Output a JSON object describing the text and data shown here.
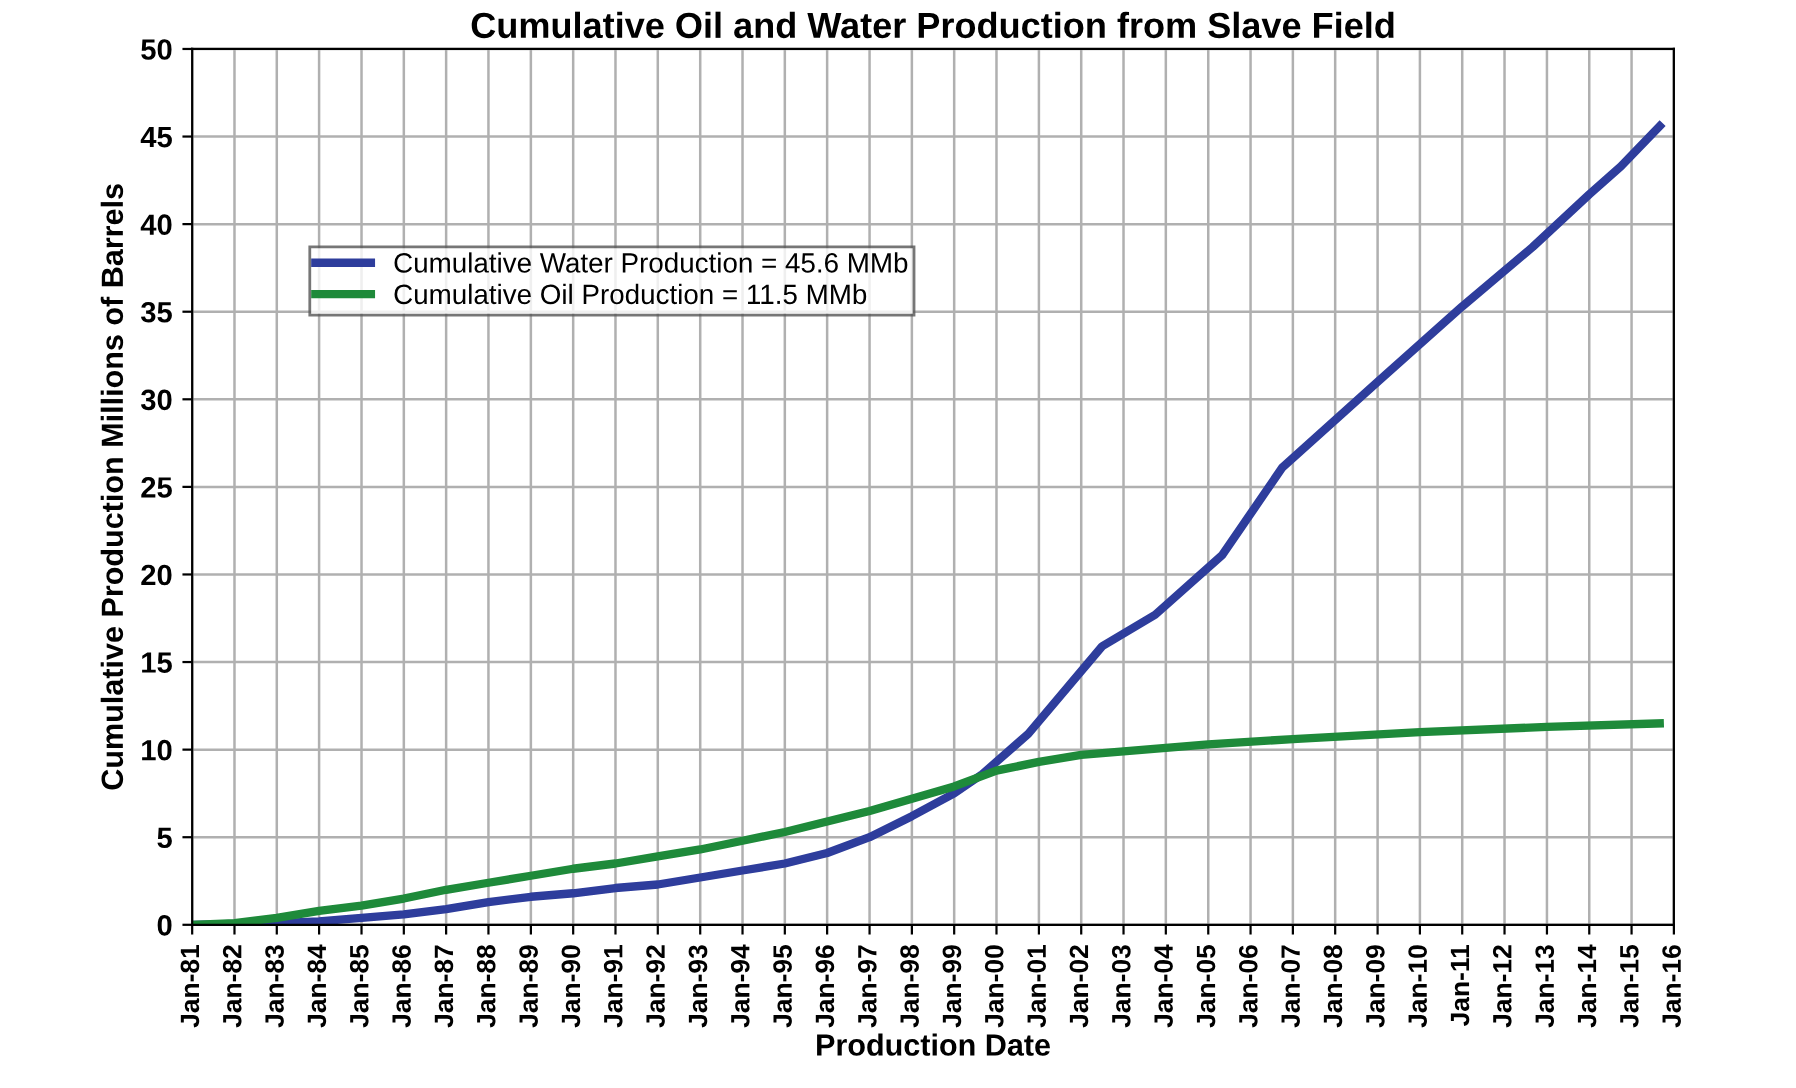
{
  "chart_data": {
    "type": "line",
    "title": "Cumulative Oil and Water Production from Slave Field",
    "xlabel": "Production Date",
    "ylabel": "Cumulative Production Millions of Barrels",
    "series": [
      {
        "name": "Cumulative Water Production = 45.6 MMb",
        "color": "#2e3d9c",
        "x": [
          "1981-01",
          "1983-01",
          "1984-01",
          "1985-01",
          "1986-01",
          "1987-01",
          "1988-01",
          "1989-01",
          "1990-01",
          "1991-01",
          "1992-01",
          "1993-01",
          "1994-01",
          "1995-01",
          "1996-01",
          "1997-01",
          "1998-01",
          "1999-01",
          "1999-09",
          "2000-10",
          "2002-07",
          "2003-10",
          "2005-05",
          "2006-10",
          "2009-01",
          "2011-01",
          "2012-09",
          "2014-01",
          "2014-10",
          "2015-09"
        ],
        "values": [
          0,
          0.1,
          0.2,
          0.4,
          0.6,
          0.9,
          1.3,
          1.6,
          1.8,
          2.1,
          2.3,
          2.7,
          3.1,
          3.5,
          4.1,
          5.0,
          6.2,
          7.5,
          8.6,
          10.9,
          15.9,
          17.7,
          21.1,
          26.1,
          31.0,
          35.3,
          38.7,
          41.7,
          43.3,
          45.6
        ]
      },
      {
        "name": "Cumulative Oil Production = 11.5 MMb",
        "color": "#1e8a3a",
        "x": [
          "1981-01",
          "1982-01",
          "1983-01",
          "1984-01",
          "1985-01",
          "1986-01",
          "1987-01",
          "1988-01",
          "1989-01",
          "1990-01",
          "1991-01",
          "1992-01",
          "1993-01",
          "1994-01",
          "1995-01",
          "1996-01",
          "1997-01",
          "1998-01",
          "1999-01",
          "2000-01",
          "2001-01",
          "2002-01",
          "2003-01",
          "2005-01",
          "2007-01",
          "2010-01",
          "2013-01",
          "2015-09"
        ],
        "values": [
          0,
          0.1,
          0.4,
          0.8,
          1.1,
          1.5,
          2.0,
          2.4,
          2.8,
          3.2,
          3.5,
          3.9,
          4.3,
          4.8,
          5.3,
          5.9,
          6.5,
          7.2,
          7.9,
          8.8,
          9.3,
          9.7,
          9.9,
          10.3,
          10.6,
          11.0,
          11.3,
          11.5
        ]
      }
    ],
    "xlim": [
      "1981-01",
      "2016-01"
    ],
    "xticks": [
      {
        "value": "1981-01",
        "label": "Jan-81"
      },
      {
        "value": "1982-01",
        "label": "Jan-82"
      },
      {
        "value": "1983-01",
        "label": "Jan-83"
      },
      {
        "value": "1984-01",
        "label": "Jan-84"
      },
      {
        "value": "1985-01",
        "label": "Jan-85"
      },
      {
        "value": "1986-01",
        "label": "Jan-86"
      },
      {
        "value": "1987-01",
        "label": "Jan-87"
      },
      {
        "value": "1988-01",
        "label": "Jan-88"
      },
      {
        "value": "1989-01",
        "label": "Jan-89"
      },
      {
        "value": "1990-01",
        "label": "Jan-90"
      },
      {
        "value": "1991-01",
        "label": "Jan-91"
      },
      {
        "value": "1992-01",
        "label": "Jan-92"
      },
      {
        "value": "1993-01",
        "label": "Jan-93"
      },
      {
        "value": "1994-01",
        "label": "Jan-94"
      },
      {
        "value": "1995-01",
        "label": "Jan-95"
      },
      {
        "value": "1996-01",
        "label": "Jan-96"
      },
      {
        "value": "1997-01",
        "label": "Jan-97"
      },
      {
        "value": "1998-01",
        "label": "Jan-98"
      },
      {
        "value": "1999-01",
        "label": "Jan-99"
      },
      {
        "value": "2000-01",
        "label": "Jan-00"
      },
      {
        "value": "2001-01",
        "label": "Jan-01"
      },
      {
        "value": "2002-01",
        "label": "Jan-02"
      },
      {
        "value": "2003-01",
        "label": "Jan-03"
      },
      {
        "value": "2004-01",
        "label": "Jan-04"
      },
      {
        "value": "2005-01",
        "label": "Jan-05"
      },
      {
        "value": "2006-01",
        "label": "Jan-06"
      },
      {
        "value": "2007-01",
        "label": "Jan-07"
      },
      {
        "value": "2008-01",
        "label": "Jan-08"
      },
      {
        "value": "2009-01",
        "label": "Jan-09"
      },
      {
        "value": "2010-01",
        "label": "Jan-10"
      },
      {
        "value": "2011-01",
        "label": "Jan-11"
      },
      {
        "value": "2012-01",
        "label": "Jan-12"
      },
      {
        "value": "2013-01",
        "label": "Jan-13"
      },
      {
        "value": "2014-01",
        "label": "Jan-14"
      },
      {
        "value": "2015-01",
        "label": "Jan-15"
      },
      {
        "value": "2016-01",
        "label": "Jan-16"
      }
    ],
    "ylim": [
      0,
      50
    ],
    "yticks": [
      0,
      5,
      10,
      15,
      20,
      25,
      30,
      35,
      40,
      45,
      50
    ],
    "grid": true,
    "legend": "top left",
    "marker": "none",
    "line_style": "solid"
  }
}
